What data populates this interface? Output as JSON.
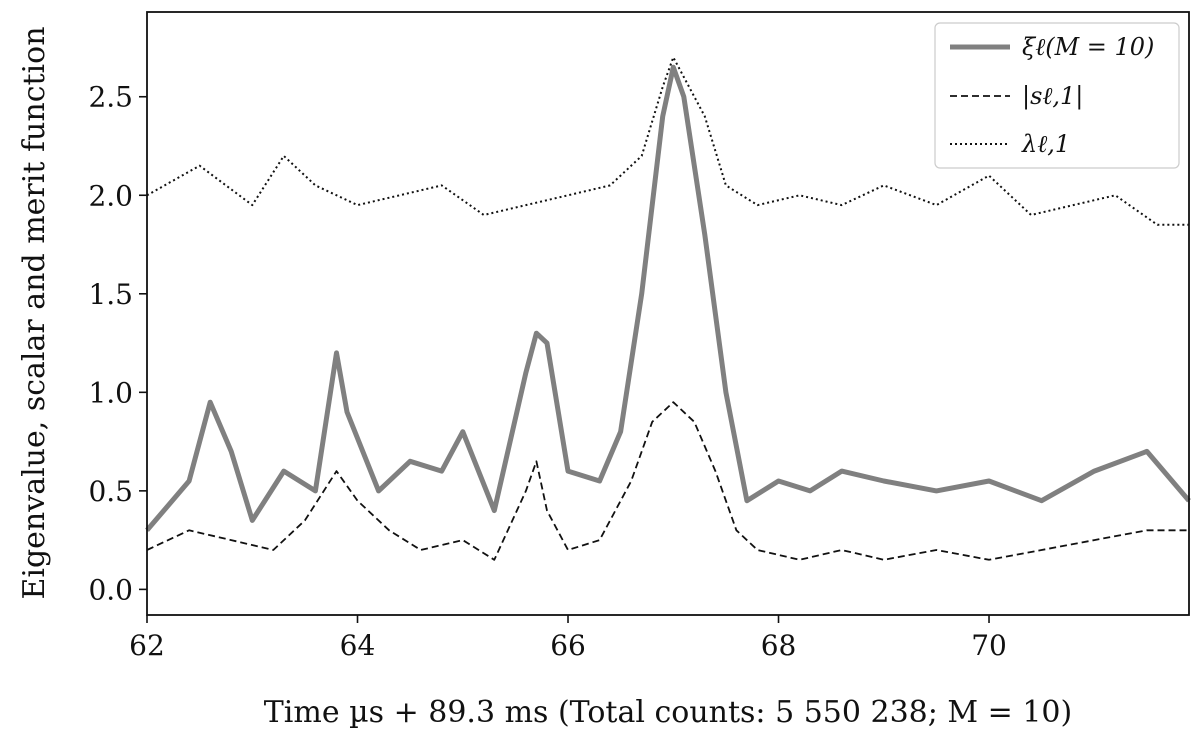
{
  "chart_data": {
    "type": "line",
    "xlabel": "Time µs + 89.3 ms (Total counts: 5 550 238; M = 10)",
    "ylabel": "Eigenvalue, scalar and merit function",
    "xlim": [
      62,
      71.9
    ],
    "ylim": [
      -0.13,
      2.93
    ],
    "x_ticks": [
      62,
      64,
      66,
      68,
      70
    ],
    "x_tick_labels": [
      "62",
      "64",
      "66",
      "68",
      "70"
    ],
    "y_ticks": [
      0.0,
      0.5,
      1.0,
      1.5,
      2.0,
      2.5
    ],
    "y_tick_labels": [
      "0.0",
      "0.5",
      "1.0",
      "1.5",
      "2.0",
      "2.5"
    ],
    "legend_position": "top-right",
    "series": [
      {
        "name": "ξℓ(M = 10)",
        "color": "#808080",
        "style": "solid-thick",
        "x": [
          62.0,
          62.4,
          62.6,
          62.8,
          63.0,
          63.3,
          63.6,
          63.8,
          63.9,
          64.2,
          64.5,
          64.8,
          65.0,
          65.3,
          65.6,
          65.7,
          65.8,
          66.0,
          66.3,
          66.5,
          66.7,
          66.9,
          67.0,
          67.1,
          67.3,
          67.5,
          67.7,
          68.0,
          68.3,
          68.6,
          69.0,
          69.5,
          70.0,
          70.5,
          71.0,
          71.5,
          71.9
        ],
        "values": [
          0.3,
          0.55,
          0.95,
          0.7,
          0.35,
          0.6,
          0.5,
          1.2,
          0.9,
          0.5,
          0.65,
          0.6,
          0.8,
          0.4,
          1.1,
          1.3,
          1.25,
          0.6,
          0.55,
          0.8,
          1.5,
          2.4,
          2.65,
          2.5,
          1.8,
          1.0,
          0.45,
          0.55,
          0.5,
          0.6,
          0.55,
          0.5,
          0.55,
          0.45,
          0.6,
          0.7,
          0.45
        ]
      },
      {
        "name": "|sℓ,1|",
        "color": "#111111",
        "style": "dashed",
        "x": [
          62.0,
          62.4,
          62.8,
          63.2,
          63.5,
          63.8,
          64.0,
          64.3,
          64.6,
          65.0,
          65.3,
          65.6,
          65.7,
          65.8,
          66.0,
          66.3,
          66.6,
          66.8,
          67.0,
          67.2,
          67.4,
          67.6,
          67.8,
          68.2,
          68.6,
          69.0,
          69.5,
          70.0,
          70.5,
          71.0,
          71.5,
          71.9
        ],
        "values": [
          0.2,
          0.3,
          0.25,
          0.2,
          0.35,
          0.6,
          0.45,
          0.3,
          0.2,
          0.25,
          0.15,
          0.5,
          0.65,
          0.4,
          0.2,
          0.25,
          0.55,
          0.85,
          0.95,
          0.85,
          0.6,
          0.3,
          0.2,
          0.15,
          0.2,
          0.15,
          0.2,
          0.15,
          0.2,
          0.25,
          0.3,
          0.3
        ]
      },
      {
        "name": "λℓ,1",
        "color": "#111111",
        "style": "dotted",
        "x": [
          62.0,
          62.5,
          63.0,
          63.3,
          63.6,
          64.0,
          64.4,
          64.8,
          65.2,
          65.6,
          66.0,
          66.4,
          66.7,
          66.9,
          67.0,
          67.1,
          67.3,
          67.5,
          67.8,
          68.2,
          68.6,
          69.0,
          69.5,
          70.0,
          70.4,
          70.8,
          71.2,
          71.6,
          71.9
        ],
        "values": [
          2.0,
          2.15,
          1.95,
          2.2,
          2.05,
          1.95,
          2.0,
          2.05,
          1.9,
          1.95,
          2.0,
          2.05,
          2.2,
          2.55,
          2.7,
          2.6,
          2.4,
          2.05,
          1.95,
          2.0,
          1.95,
          2.05,
          1.95,
          2.1,
          1.9,
          1.95,
          2.0,
          1.85,
          1.85
        ]
      }
    ]
  }
}
